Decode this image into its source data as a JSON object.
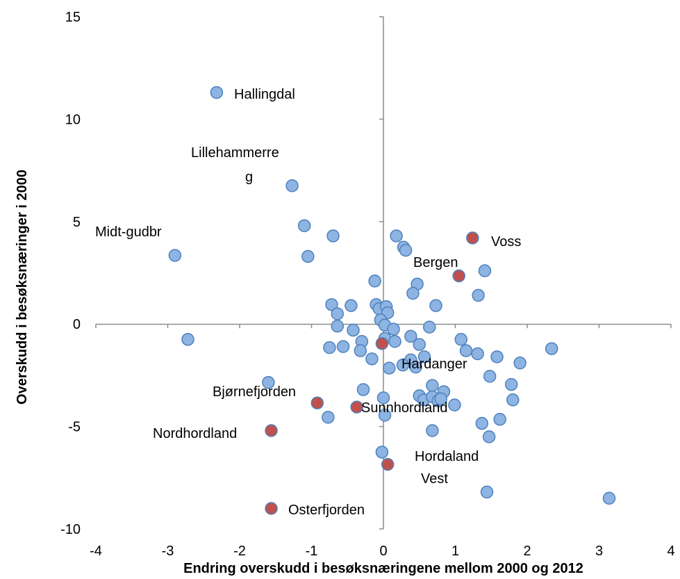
{
  "chart_data": {
    "type": "scatter",
    "xlabel": "Endring overskudd i besøksnæringene mellom 2000 og 2012",
    "ylabel": "Overskudd i besøksnæringer i 2000",
    "xlim": [
      -4,
      4
    ],
    "ylim": [
      -10,
      15
    ],
    "x_ticks": [
      "-4",
      "-3",
      "-2",
      "-1",
      "0",
      "1",
      "2",
      "3",
      "4"
    ],
    "y_ticks": [
      "15",
      "10",
      "5",
      "0",
      "-5",
      "-10"
    ],
    "grid": false,
    "legend": "none",
    "colors": {
      "blue_fill": "#8db4e2",
      "blue_stroke": "#4f81bd",
      "red_fill": "#c0504d",
      "red_stroke": "#4f81bd"
    },
    "series": [
      {
        "color": "blue",
        "points": [
          {
            "x": -2.32,
            "y": 11.3,
            "label": "Hallingdal"
          },
          {
            "x": -1.27,
            "y": 6.75,
            "label": "Lillehammerreg"
          },
          {
            "x": -2.9,
            "y": 3.35,
            "label": "Midt-gudbr"
          },
          {
            "x": -1.1,
            "y": 4.8
          },
          {
            "x": -1.05,
            "y": 3.3
          },
          {
            "x": -0.7,
            "y": 4.3
          },
          {
            "x": -2.72,
            "y": -0.75
          },
          {
            "x": -0.72,
            "y": 0.95
          },
          {
            "x": -0.64,
            "y": 0.5
          },
          {
            "x": -0.64,
            "y": -0.1
          },
          {
            "x": -0.45,
            "y": 0.9
          },
          {
            "x": -0.42,
            "y": -0.3
          },
          {
            "x": -0.56,
            "y": -1.1
          },
          {
            "x": -0.75,
            "y": -1.15
          },
          {
            "x": -0.3,
            "y": -0.85
          },
          {
            "x": -0.32,
            "y": -1.3
          },
          {
            "x": -0.16,
            "y": -1.7
          },
          {
            "x": -0.12,
            "y": 2.1
          },
          {
            "x": -0.1,
            "y": 0.95
          },
          {
            "x": -0.06,
            "y": 0.75
          },
          {
            "x": 0.04,
            "y": 0.85
          },
          {
            "x": 0.06,
            "y": 0.55
          },
          {
            "x": -0.04,
            "y": 0.2
          },
          {
            "x": 0.02,
            "y": -0.05
          },
          {
            "x": 0.14,
            "y": -0.25
          },
          {
            "x": 0.02,
            "y": -0.7
          },
          {
            "x": 0.16,
            "y": -0.85
          },
          {
            "x": 0.18,
            "y": 4.3
          },
          {
            "x": 0.28,
            "y": 3.75
          },
          {
            "x": 0.31,
            "y": 3.6
          },
          {
            "x": 0.47,
            "y": 1.95
          },
          {
            "x": 0.41,
            "y": 1.5
          },
          {
            "x": 0.73,
            "y": 0.9
          },
          {
            "x": 0.64,
            "y": -0.15
          },
          {
            "x": 0.38,
            "y": -0.6
          },
          {
            "x": 0.5,
            "y": -1.0
          },
          {
            "x": 0.38,
            "y": -1.75
          },
          {
            "x": 0.57,
            "y": -1.6
          },
          {
            "x": 0.45,
            "y": -2.1
          },
          {
            "x": 0.27,
            "y": -2.0
          },
          {
            "x": 0.08,
            "y": -2.15
          },
          {
            "x": 1.41,
            "y": 2.6
          },
          {
            "x": 1.32,
            "y": 1.4
          },
          {
            "x": 1.08,
            "y": -0.75
          },
          {
            "x": 1.15,
            "y": -1.3
          },
          {
            "x": 1.31,
            "y": -1.45
          },
          {
            "x": 1.58,
            "y": -1.6
          },
          {
            "x": 1.9,
            "y": -1.9
          },
          {
            "x": 2.34,
            "y": -1.2
          },
          {
            "x": 1.48,
            "y": -2.55
          },
          {
            "x": 1.78,
            "y": -2.95
          },
          {
            "x": -1.6,
            "y": -2.85
          },
          {
            "x": -0.28,
            "y": -3.2
          },
          {
            "x": 0.0,
            "y": -3.6
          },
          {
            "x": 0.68,
            "y": -3.0
          },
          {
            "x": 0.84,
            "y": -3.3
          },
          {
            "x": 0.5,
            "y": -3.5
          },
          {
            "x": 0.56,
            "y": -3.7
          },
          {
            "x": 0.68,
            "y": -3.55
          },
          {
            "x": 0.76,
            "y": -3.75
          },
          {
            "x": 0.8,
            "y": -3.65
          },
          {
            "x": 0.99,
            "y": -3.95
          },
          {
            "x": 1.8,
            "y": -3.7
          },
          {
            "x": -0.77,
            "y": -4.55
          },
          {
            "x": 0.02,
            "y": -4.45
          },
          {
            "x": 1.37,
            "y": -4.85
          },
          {
            "x": 1.62,
            "y": -4.65
          },
          {
            "x": 0.68,
            "y": -5.2
          },
          {
            "x": 1.47,
            "y": -5.5
          },
          {
            "x": -0.02,
            "y": -6.25
          },
          {
            "x": 1.44,
            "y": -8.2
          },
          {
            "x": 3.14,
            "y": -8.5
          }
        ]
      },
      {
        "color": "red",
        "points": [
          {
            "x": 1.24,
            "y": 4.2,
            "label": "Voss"
          },
          {
            "x": 1.05,
            "y": 2.35,
            "label": "Bergen"
          },
          {
            "x": -0.02,
            "y": -0.95,
            "label": "Hardanger"
          },
          {
            "x": -0.92,
            "y": -3.85,
            "label": "Bjørnefjorden"
          },
          {
            "x": -0.37,
            "y": -4.05,
            "label": "Sunnhordland"
          },
          {
            "x": -1.56,
            "y": -5.2,
            "label": "Nordhordland"
          },
          {
            "x": 0.06,
            "y": -6.85,
            "label": "Hordaland Vest"
          },
          {
            "x": -1.56,
            "y": -9.0,
            "label": "Osterfjorden"
          }
        ]
      }
    ],
    "point_labels": {
      "hallingdal": "Hallingdal",
      "lillehammer_1": "Lillehammerre",
      "lillehammer_2": "g",
      "midt_gudbr": "Midt-gudbr",
      "voss": "Voss",
      "bergen": "Bergen",
      "hardanger": "Hardanger",
      "bjornefjorden": "Bjørnefjorden",
      "sunnhordland": "Sunnhordland",
      "nordhordland": "Nordhordland",
      "hordaland_1": "Hordaland",
      "hordaland_2": "Vest",
      "osterfjorden": "Osterfjorden"
    }
  }
}
